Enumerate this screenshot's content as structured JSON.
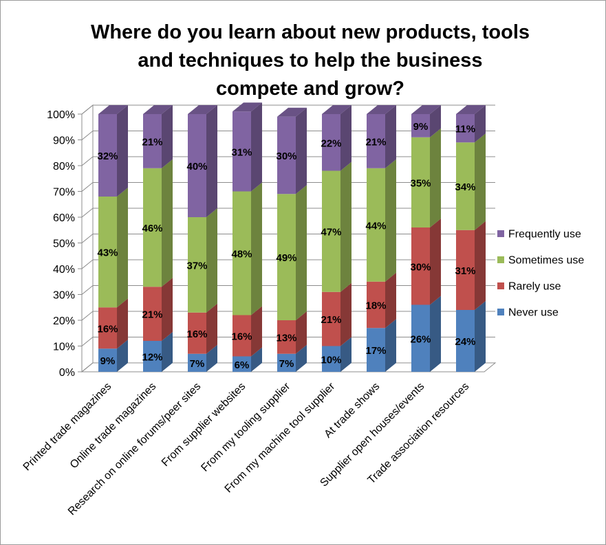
{
  "chart_data": {
    "type": "bar",
    "stacked": true,
    "percent_stacked": true,
    "three_d": true,
    "title_lines": [
      "Where do you learn about new products, tools",
      "and techniques to help the business",
      "compete and grow?"
    ],
    "categories": [
      "Printed trade magazines",
      "Online trade magazines",
      "Research on online forums/peer sites",
      "From supplier websites",
      "From my tooling supplier",
      "From my machine tool supplier",
      "At trade shows",
      "Supplier open houses/events",
      "Trade association resources"
    ],
    "series": [
      {
        "name": "Never use",
        "color": "#4F81BD",
        "values": [
          9,
          12,
          7,
          6,
          7,
          10,
          17,
          26,
          24
        ]
      },
      {
        "name": "Rarely use",
        "color": "#C0504D",
        "values": [
          16,
          21,
          16,
          16,
          13,
          21,
          18,
          30,
          31
        ]
      },
      {
        "name": "Sometimes use",
        "color": "#9BBB59",
        "values": [
          43,
          46,
          37,
          48,
          49,
          47,
          44,
          35,
          34
        ]
      },
      {
        "name": "Frequently use",
        "color": "#8064A2",
        "values": [
          32,
          21,
          40,
          31,
          30,
          22,
          21,
          9,
          11
        ]
      }
    ],
    "ylim": [
      0,
      100
    ],
    "yticks": [
      "0%",
      "10%",
      "20%",
      "30%",
      "40%",
      "50%",
      "60%",
      "70%",
      "80%",
      "90%",
      "100%"
    ],
    "grid": true,
    "legend_position": "right",
    "legend_order": [
      "Frequently use",
      "Sometimes use",
      "Rarely use",
      "Never use"
    ]
  }
}
